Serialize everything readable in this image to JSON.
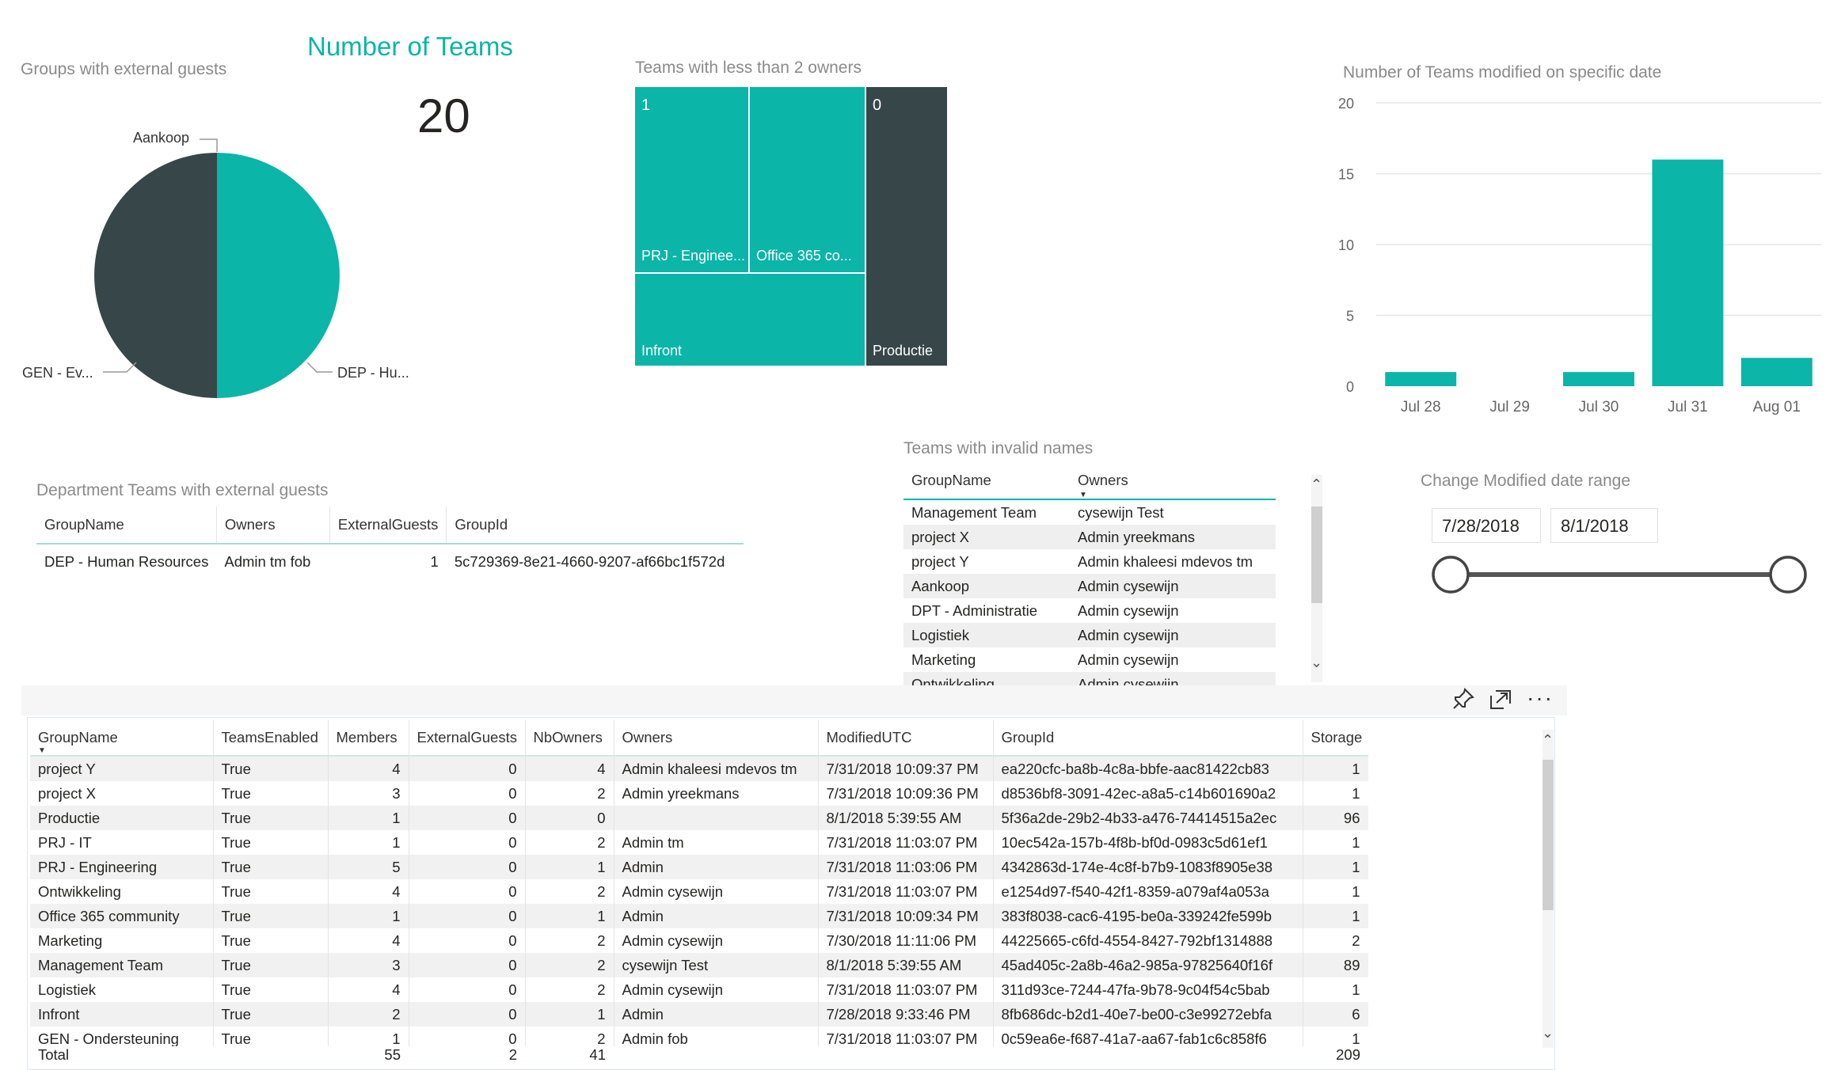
{
  "pie": {
    "title": "Groups with external guests",
    "labels": [
      "Aankoop",
      "GEN - Ev...",
      "DEP - Hu..."
    ],
    "colors": {
      "dark": "#374649",
      "teal": "#0bb5a8"
    }
  },
  "card": {
    "title": "Number of Teams",
    "value": "20",
    "title_color": "#0bb5a8"
  },
  "treemap": {
    "title": "Teams with less than 2 owners",
    "groups": [
      {
        "value": "1",
        "items": [
          "PRJ - Enginee...",
          "Office 365 co...",
          "Infront"
        ]
      },
      {
        "value": "0",
        "items": [
          "Productie"
        ]
      }
    ]
  },
  "chart_data": {
    "type": "bar",
    "title": "Number of Teams modified on specific date",
    "categories": [
      "Jul 28",
      "Jul 29",
      "Jul 30",
      "Jul 31",
      "Aug 01"
    ],
    "values": [
      1,
      0,
      1,
      16,
      2
    ],
    "yticks": [
      "0",
      "5",
      "10",
      "15",
      "20"
    ],
    "ylim": [
      0,
      20
    ],
    "grid": true,
    "color": "#0bb5a8"
  },
  "dept_table": {
    "title": "Department Teams with external guests",
    "columns": [
      "GroupName",
      "Owners",
      "ExternalGuests",
      "GroupId"
    ],
    "rows": [
      [
        "DEP - Human Resources",
        "Admin tm fob",
        "1",
        "5c729369-8e21-4660-9207-af66bc1f572d"
      ]
    ]
  },
  "invalid_table": {
    "title": "Teams with invalid names",
    "columns": [
      "GroupName",
      "Owners"
    ],
    "rows": [
      [
        "Management Team",
        "cysewijn Test"
      ],
      [
        "project X",
        "Admin yreekmans"
      ],
      [
        "project Y",
        "Admin khaleesi mdevos tm"
      ],
      [
        "Aankoop",
        "Admin cysewijn"
      ],
      [
        "DPT - Administratie",
        "Admin cysewijn"
      ],
      [
        "Logistiek",
        "Admin cysewijn"
      ],
      [
        "Marketing",
        "Admin cysewijn"
      ],
      [
        "Ontwikkeling",
        "Admin cysewijn"
      ]
    ]
  },
  "slicer": {
    "title": "Change Modified date range",
    "start": "7/28/2018",
    "end": "8/1/2018"
  },
  "main_table": {
    "columns": [
      "GroupName",
      "TeamsEnabled",
      "Members",
      "ExternalGuests",
      "NbOwners",
      "Owners",
      "ModifiedUTC",
      "GroupId",
      "Storage"
    ],
    "rows": [
      [
        "project Y",
        "True",
        "4",
        "0",
        "4",
        "Admin khaleesi mdevos tm",
        "7/31/2018 10:09:37 PM",
        "ea220cfc-ba8b-4c8a-bbfe-aac81422cb83",
        "1"
      ],
      [
        "project X",
        "True",
        "3",
        "0",
        "2",
        "Admin yreekmans",
        "7/31/2018 10:09:36 PM",
        "d8536bf8-3091-42ec-a8a5-c14b601690a2",
        "1"
      ],
      [
        "Productie",
        "True",
        "1",
        "0",
        "0",
        "",
        "8/1/2018 5:39:55 AM",
        "5f36a2de-29b2-4b33-a476-74414515a2ec",
        "96"
      ],
      [
        "PRJ - IT",
        "True",
        "1",
        "0",
        "2",
        "Admin tm",
        "7/31/2018 11:03:07 PM",
        "10ec542a-157b-4f8b-bf0d-0983c5d61ef1",
        "1"
      ],
      [
        "PRJ - Engineering",
        "True",
        "5",
        "0",
        "1",
        "Admin",
        "7/31/2018 11:03:06 PM",
        "4342863d-174e-4c8f-b7b9-1083f8905e38",
        "1"
      ],
      [
        "Ontwikkeling",
        "True",
        "4",
        "0",
        "2",
        "Admin cysewijn",
        "7/31/2018 11:03:07 PM",
        "e1254d97-f540-42f1-8359-a079af4a053a",
        "1"
      ],
      [
        "Office 365 community",
        "True",
        "1",
        "0",
        "1",
        "Admin",
        "7/31/2018 10:09:34 PM",
        "383f8038-cac6-4195-be0a-339242fe599b",
        "1"
      ],
      [
        "Marketing",
        "True",
        "4",
        "0",
        "2",
        "Admin cysewijn",
        "7/30/2018 11:11:06 PM",
        "44225665-c6fd-4554-8427-792bf1314888",
        "2"
      ],
      [
        "Management Team",
        "True",
        "3",
        "0",
        "2",
        "cysewijn Test",
        "8/1/2018 5:39:55 AM",
        "45ad405c-2a8b-46a2-985a-97825640f16f",
        "89"
      ],
      [
        "Logistiek",
        "True",
        "4",
        "0",
        "2",
        "Admin cysewijn",
        "7/31/2018 11:03:07 PM",
        "311d93ce-7244-47fa-9b78-9c04f54c5bab",
        "1"
      ],
      [
        "Infront",
        "True",
        "2",
        "0",
        "1",
        "Admin",
        "7/28/2018 9:33:46 PM",
        "8fb686dc-b2d1-40e7-be00-c3e99272ebfa",
        "6"
      ],
      [
        "GEN - Ondersteuning",
        "True",
        "1",
        "0",
        "2",
        "Admin fob",
        "7/31/2018 11:03:07 PM",
        "0c59ea6e-f687-41a7-aa67-fab1c6c858f6",
        "1"
      ]
    ],
    "totals": [
      "Total",
      "",
      "55",
      "2",
      "41",
      "",
      "",
      "",
      "209"
    ]
  },
  "toolbar": {
    "icons": [
      "pin-icon",
      "focus-mode-icon",
      "more-options-icon"
    ]
  }
}
